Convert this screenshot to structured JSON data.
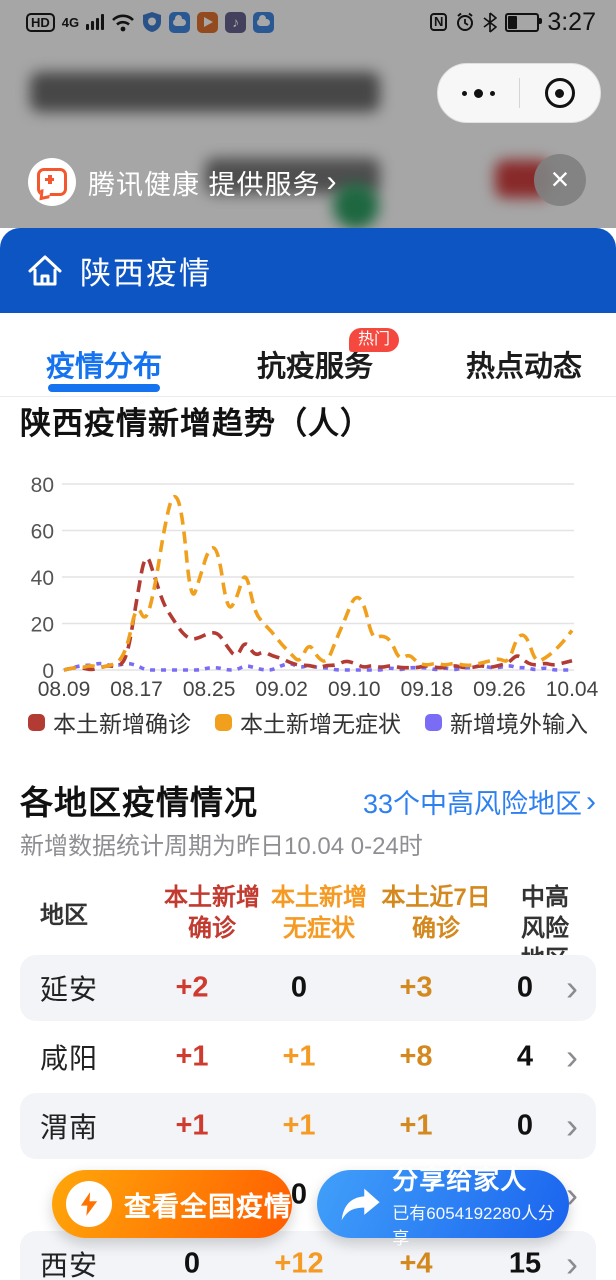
{
  "status_bar": {
    "hd": "HD",
    "network": "4G",
    "nfc": "N",
    "time": "3:27"
  },
  "service_banner": {
    "text": "腾讯健康 提供服务",
    "chevron": "›",
    "close": "×"
  },
  "header": {
    "title": "陕西疫情"
  },
  "tabs": {
    "items": [
      {
        "label": "疫情分布",
        "active": true
      },
      {
        "label": "抗疫服务",
        "badge": "热门"
      },
      {
        "label": "热点动态"
      }
    ],
    "badge": "热门"
  },
  "chart_section": {
    "title": "陕西疫情新增趋势（人）"
  },
  "chart_data": {
    "type": "line",
    "title": "陕西疫情新增趋势（人）",
    "grid": "horizontal",
    "legend_position": "bottom",
    "ylim": [
      0,
      80
    ],
    "y_ticks": [
      0,
      20,
      40,
      60,
      80
    ],
    "x_tick_labels": [
      "08.09",
      "08.17",
      "08.25",
      "09.02",
      "09.10",
      "09.18",
      "09.26",
      "10.04"
    ],
    "x_tick_indices": [
      0,
      8,
      16,
      24,
      32,
      40,
      48,
      56
    ],
    "x": [
      "08.09",
      "08.10",
      "08.11",
      "08.12",
      "08.13",
      "08.14",
      "08.15",
      "08.16",
      "08.17",
      "08.18",
      "08.19",
      "08.20",
      "08.21",
      "08.22",
      "08.23",
      "08.24",
      "08.25",
      "08.26",
      "08.27",
      "08.28",
      "08.29",
      "08.30",
      "08.31",
      "09.01",
      "09.02",
      "09.03",
      "09.04",
      "09.05",
      "09.06",
      "09.07",
      "09.08",
      "09.09",
      "09.10",
      "09.11",
      "09.12",
      "09.13",
      "09.14",
      "09.15",
      "09.16",
      "09.17",
      "09.18",
      "09.19",
      "09.20",
      "09.21",
      "09.22",
      "09.23",
      "09.24",
      "09.25",
      "09.26",
      "09.27",
      "09.28",
      "09.29",
      "09.30",
      "10.01",
      "10.02",
      "10.03",
      "10.04"
    ],
    "series": [
      {
        "name": "本土新增确诊",
        "color": "#b23c33",
        "dash": "long",
        "values": [
          0,
          1,
          1,
          0,
          1,
          2,
          1,
          6,
          30,
          52,
          40,
          28,
          22,
          16,
          13,
          14,
          16,
          16,
          10,
          5,
          13,
          6,
          8,
          6,
          5,
          3,
          2,
          2,
          1,
          2,
          2,
          4,
          3,
          1,
          2,
          1,
          2,
          1,
          1,
          1,
          2,
          1,
          1,
          2,
          1,
          1,
          2,
          1,
          2,
          3,
          7,
          3,
          2,
          3,
          2,
          3,
          4
        ]
      },
      {
        "name": "本土新增无症状",
        "color": "#f0a01d",
        "dash": "long",
        "values": [
          0,
          1,
          1,
          2,
          1,
          2,
          3,
          10,
          29,
          20,
          35,
          60,
          77,
          70,
          28,
          40,
          53,
          52,
          25,
          30,
          44,
          25,
          20,
          16,
          11,
          7,
          3,
          12,
          5,
          3,
          13,
          22,
          32,
          30,
          13,
          15,
          13,
          4,
          7,
          3,
          2,
          3,
          2,
          3,
          2,
          2,
          3,
          4,
          5,
          3,
          15,
          15,
          3,
          5,
          8,
          12,
          17
        ]
      },
      {
        "name": "新增境外输入",
        "color": "#7a6cf5",
        "dash": "short",
        "values": [
          0,
          1,
          2,
          2,
          3,
          2,
          2,
          3,
          2,
          0,
          0,
          0,
          0,
          0,
          0,
          0,
          1,
          1,
          0,
          0,
          2,
          1,
          0,
          0,
          2,
          3,
          1,
          2,
          1,
          1,
          0,
          0,
          0,
          0,
          0,
          0,
          1,
          0,
          1,
          1,
          1,
          0,
          1,
          0,
          1,
          1,
          2,
          1,
          1,
          2,
          1,
          1,
          0,
          1,
          0,
          0,
          0
        ]
      }
    ]
  },
  "regions_section": {
    "title": "各地区疫情情况",
    "link": "33个中高风险地区",
    "link_chevron": "›",
    "subtitle": "新增数据统计周期为昨日10.04 0-24时",
    "table": {
      "columns": [
        {
          "lines": [
            "地区"
          ],
          "color": "#333333"
        },
        {
          "lines": [
            "本土新增",
            "确诊"
          ],
          "color": "#c13b30"
        },
        {
          "lines": [
            "本土新增",
            "无症状"
          ],
          "color": "#f59a23"
        },
        {
          "lines": [
            "本土近7日",
            "确诊"
          ],
          "color": "#d4891f"
        },
        {
          "lines": [
            "中高风险",
            "地区"
          ],
          "color": "#333333"
        }
      ],
      "value_colors": [
        "#d03b30",
        "#f59a23",
        "#d4891f",
        "#111111"
      ],
      "rows": [
        {
          "name": "延安",
          "values": [
            "+2",
            "0",
            "+3",
            "0"
          ]
        },
        {
          "name": "咸阳",
          "values": [
            "+1",
            "+1",
            "+8",
            "4"
          ]
        },
        {
          "name": "渭南",
          "values": [
            "+1",
            "+1",
            "+1",
            "0"
          ]
        },
        {
          "name": "",
          "values": [
            "",
            "0",
            "",
            ""
          ],
          "covered": true
        },
        {
          "name": "西安",
          "values": [
            "0",
            "+12",
            "+4",
            "15"
          ]
        }
      ]
    }
  },
  "float_buttons": {
    "national": {
      "label": "查看全国疫情"
    },
    "share": {
      "label": "分享给家人",
      "sub": "已有6054192280人分享"
    }
  }
}
